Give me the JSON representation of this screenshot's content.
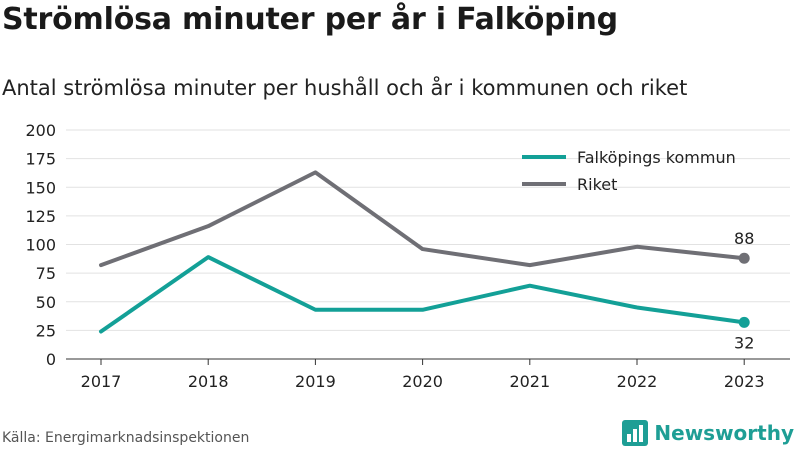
{
  "header": {
    "title": "Strömlösa minuter per år i Falköping",
    "subtitle": "Antal strömlösa minuter per hushåll och år i kommunen och riket"
  },
  "footer": {
    "source": "Källa: Energimarknadsinspektionen",
    "brand": "Newsworthy",
    "brand_icon": "bar-chart-logo-icon"
  },
  "chart_data": {
    "type": "line",
    "x": [
      "2017",
      "2018",
      "2019",
      "2020",
      "2021",
      "2022",
      "2023"
    ],
    "series": [
      {
        "name": "Falköpings kommun",
        "color": "#13a097",
        "values": [
          24,
          89,
          43,
          43,
          64,
          45,
          32
        ],
        "end_label": "32"
      },
      {
        "name": "Riket",
        "color": "#6f6f75",
        "values": [
          82,
          116,
          163,
          96,
          82,
          98,
          88
        ],
        "end_label": "88"
      }
    ],
    "ylim": [
      0,
      200
    ],
    "yticks": [
      "0",
      "25",
      "50",
      "75",
      "100",
      "125",
      "150",
      "175",
      "200"
    ],
    "grid": true,
    "legend": "top-right"
  }
}
